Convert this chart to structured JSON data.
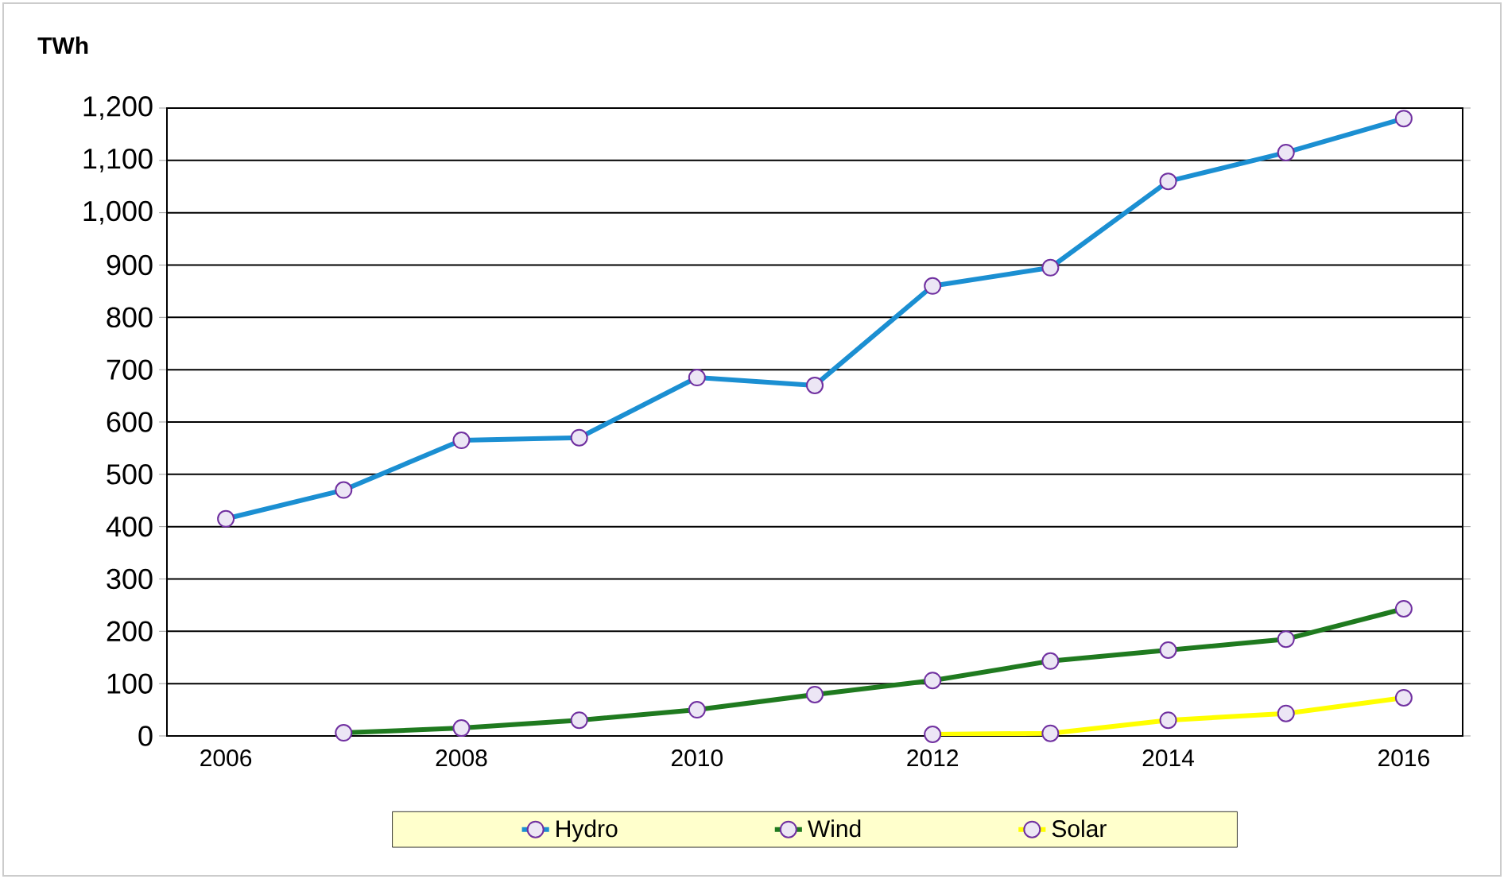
{
  "chart_data": {
    "type": "line",
    "ylabel": "TWh",
    "x": [
      2006,
      2007,
      2008,
      2009,
      2010,
      2011,
      2012,
      2013,
      2014,
      2015,
      2016
    ],
    "series": [
      {
        "name": "Hydro",
        "color": "#1b8fd2",
        "values": [
          415,
          470,
          565,
          570,
          685,
          670,
          860,
          895,
          1060,
          1115,
          1180
        ]
      },
      {
        "name": "Wind",
        "color": "#1f7a1f",
        "values": [
          null,
          6,
          15,
          30,
          50,
          79,
          106,
          143,
          164,
          185,
          243
        ]
      },
      {
        "name": "Solar",
        "color": "#ffff00",
        "values": [
          null,
          null,
          null,
          null,
          null,
          null,
          3,
          5,
          30,
          43,
          73
        ]
      }
    ],
    "xlim": [
      2005.5,
      2016.5
    ],
    "xticks": [
      2006,
      2008,
      2010,
      2012,
      2014,
      2016
    ],
    "ylim": [
      0,
      1200
    ],
    "yticks": [
      0,
      100,
      200,
      300,
      400,
      500,
      600,
      700,
      800,
      900,
      {
        "value": 1000,
        "label": "1,000"
      },
      {
        "value": 1100,
        "label": "1,100"
      },
      {
        "value": 1200,
        "label": "1,200"
      }
    ],
    "grid": "y",
    "legend": "bottom",
    "marker": "circle",
    "line_style": "solid"
  }
}
